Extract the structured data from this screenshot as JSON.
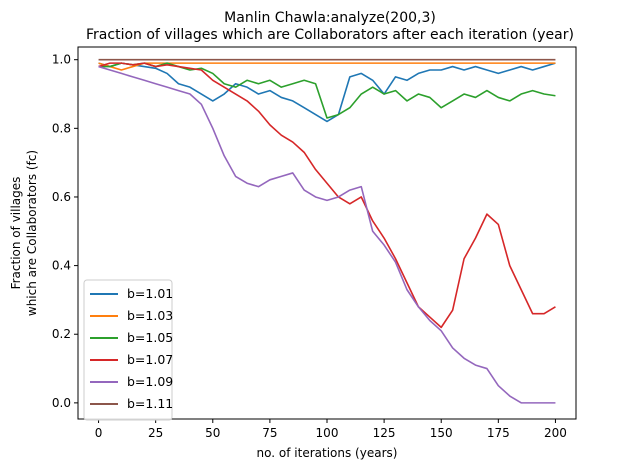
{
  "chart_data": {
    "type": "line",
    "title": "Manlin Chawla:analyze(200,3)",
    "subtitle": "Fraction of villages which are Collaborators after each iteration (year)",
    "xlabel": "no. of iterations (years)",
    "ylabel_line1": "Fraction of villages",
    "ylabel_line2": "which are Collaborators (fc)",
    "xlim": [
      -9,
      209
    ],
    "ylim": [
      -0.047,
      1.037
    ],
    "x_ticks": [
      0,
      25,
      50,
      75,
      100,
      125,
      150,
      175,
      200
    ],
    "y_ticks": [
      0.0,
      0.2,
      0.4,
      0.6,
      0.8,
      1.0
    ],
    "x_tick_labels": [
      "0",
      "25",
      "50",
      "75",
      "100",
      "125",
      "150",
      "175",
      "200"
    ],
    "y_tick_labels": [
      "0.0",
      "0.2",
      "0.4",
      "0.6",
      "0.8",
      "1.0"
    ],
    "grid": false,
    "legend_position": "lower-left",
    "x": [
      0,
      5,
      10,
      15,
      20,
      25,
      30,
      35,
      40,
      45,
      50,
      55,
      60,
      65,
      70,
      75,
      80,
      85,
      90,
      95,
      100,
      105,
      110,
      115,
      120,
      125,
      130,
      135,
      140,
      145,
      150,
      155,
      160,
      165,
      170,
      175,
      180,
      185,
      190,
      195,
      200
    ],
    "series": [
      {
        "name": "b=1.01",
        "color": "#1f77b4",
        "values": [
          0.99,
          0.98,
          0.99,
          0.985,
          0.98,
          0.975,
          0.96,
          0.93,
          0.92,
          0.9,
          0.88,
          0.9,
          0.93,
          0.92,
          0.9,
          0.91,
          0.89,
          0.88,
          0.86,
          0.84,
          0.82,
          0.84,
          0.95,
          0.96,
          0.94,
          0.9,
          0.95,
          0.94,
          0.96,
          0.97,
          0.97,
          0.98,
          0.97,
          0.98,
          0.97,
          0.96,
          0.97,
          0.98,
          0.97,
          0.98,
          0.99
        ]
      },
      {
        "name": "b=1.03",
        "color": "#ff7f0e",
        "values": [
          0.99,
          0.98,
          0.97,
          0.98,
          0.99,
          0.99,
          0.99,
          0.99,
          0.99,
          0.99,
          0.99,
          0.99,
          0.99,
          0.99,
          0.99,
          0.99,
          0.99,
          0.99,
          0.99,
          0.99,
          0.99,
          0.99,
          0.99,
          0.99,
          0.99,
          0.99,
          0.99,
          0.99,
          0.99,
          0.99,
          0.99,
          0.99,
          0.99,
          0.99,
          0.99,
          0.99,
          0.99,
          0.99,
          0.99,
          0.99,
          0.99
        ]
      },
      {
        "name": "b=1.05",
        "color": "#2ca02c",
        "values": [
          0.98,
          0.98,
          0.99,
          0.985,
          0.99,
          0.98,
          0.99,
          0.98,
          0.97,
          0.975,
          0.96,
          0.93,
          0.92,
          0.94,
          0.93,
          0.94,
          0.92,
          0.93,
          0.94,
          0.93,
          0.83,
          0.84,
          0.86,
          0.9,
          0.92,
          0.9,
          0.91,
          0.88,
          0.9,
          0.89,
          0.86,
          0.88,
          0.9,
          0.89,
          0.91,
          0.89,
          0.88,
          0.9,
          0.91,
          0.9,
          0.895
        ]
      },
      {
        "name": "b=1.07",
        "color": "#d62728",
        "values": [
          0.98,
          0.99,
          0.99,
          0.985,
          0.99,
          0.98,
          0.985,
          0.98,
          0.975,
          0.97,
          0.94,
          0.92,
          0.9,
          0.88,
          0.85,
          0.81,
          0.78,
          0.76,
          0.73,
          0.68,
          0.64,
          0.6,
          0.58,
          0.6,
          0.53,
          0.48,
          0.42,
          0.35,
          0.28,
          0.25,
          0.22,
          0.27,
          0.42,
          0.48,
          0.55,
          0.52,
          0.4,
          0.33,
          0.26,
          0.26,
          0.28
        ]
      },
      {
        "name": "b=1.09",
        "color": "#9467bd",
        "values": [
          0.98,
          0.97,
          0.96,
          0.95,
          0.94,
          0.93,
          0.92,
          0.91,
          0.9,
          0.87,
          0.8,
          0.72,
          0.66,
          0.64,
          0.63,
          0.65,
          0.66,
          0.67,
          0.62,
          0.6,
          0.59,
          0.6,
          0.62,
          0.63,
          0.5,
          0.46,
          0.41,
          0.33,
          0.28,
          0.24,
          0.21,
          0.16,
          0.13,
          0.11,
          0.1,
          0.05,
          0.02,
          0.0,
          0.0,
          0.0,
          0.0
        ]
      },
      {
        "name": "b=1.11",
        "color": "#8c564b",
        "values": [
          1.0,
          1.0,
          1.0,
          1.0,
          1.0,
          1.0,
          1.0,
          1.0,
          1.0,
          1.0,
          1.0,
          1.0,
          1.0,
          1.0,
          1.0,
          1.0,
          1.0,
          1.0,
          1.0,
          1.0,
          1.0,
          1.0,
          1.0,
          1.0,
          1.0,
          1.0,
          1.0,
          1.0,
          1.0,
          1.0,
          1.0,
          1.0,
          1.0,
          1.0,
          1.0,
          1.0,
          1.0,
          1.0,
          1.0,
          1.0,
          1.0
        ]
      }
    ]
  }
}
